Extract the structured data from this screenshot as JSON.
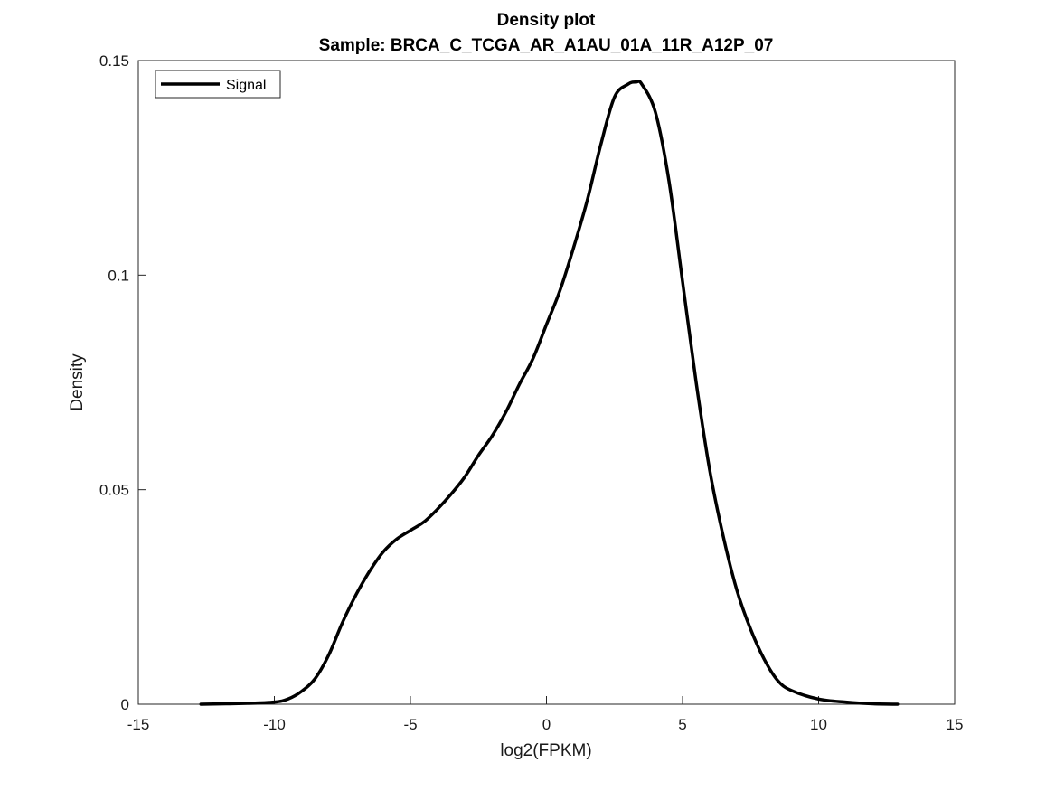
{
  "chart_data": {
    "type": "line",
    "title": "Density plot",
    "subtitle": "Sample: BRCA_C_TCGA_AR_A1AU_01A_11R_A12P_07",
    "xlabel": "log2(FPKM)",
    "ylabel": "Density",
    "xlim": [
      -15,
      15
    ],
    "ylim": [
      0,
      0.15
    ],
    "xticks": [
      -15,
      -10,
      -5,
      0,
      5,
      10,
      15
    ],
    "yticks": [
      0,
      0.05,
      0.1,
      0.15
    ],
    "xtick_labels": [
      "-15",
      "-10",
      "-5",
      "0",
      "5",
      "10",
      "15"
    ],
    "ytick_labels": [
      "0",
      "0.05",
      "0.1",
      "0.15"
    ],
    "grid": false,
    "legend": {
      "position": "top-left",
      "entries": [
        "Signal"
      ]
    },
    "series": [
      {
        "name": "Signal",
        "color": "#000000",
        "x": [
          -12.7,
          -11,
          -10,
          -9.5,
          -9,
          -8.5,
          -8,
          -7.5,
          -7,
          -6.5,
          -6,
          -5.5,
          -5,
          -4.5,
          -4,
          -3.5,
          -3,
          -2.5,
          -2,
          -1.5,
          -1,
          -0.5,
          0,
          0.5,
          1,
          1.5,
          2,
          2.5,
          3,
          3.3,
          3.5,
          4,
          4.5,
          5,
          5.5,
          6,
          6.5,
          7,
          7.5,
          8,
          8.5,
          9,
          10,
          11,
          12,
          12.9
        ],
        "y": [
          0,
          0.0002,
          0.0005,
          0.0012,
          0.003,
          0.006,
          0.0115,
          0.019,
          0.0255,
          0.031,
          0.0355,
          0.0385,
          0.0405,
          0.0425,
          0.0455,
          0.049,
          0.053,
          0.058,
          0.0625,
          0.068,
          0.0745,
          0.0805,
          0.0885,
          0.0965,
          0.1065,
          0.1175,
          0.1305,
          0.1415,
          0.1445,
          0.145,
          0.1445,
          0.138,
          0.122,
          0.0985,
          0.075,
          0.0545,
          0.039,
          0.0265,
          0.0175,
          0.0105,
          0.0055,
          0.0032,
          0.0012,
          0.0005,
          0.0001,
          0
        ]
      }
    ]
  }
}
